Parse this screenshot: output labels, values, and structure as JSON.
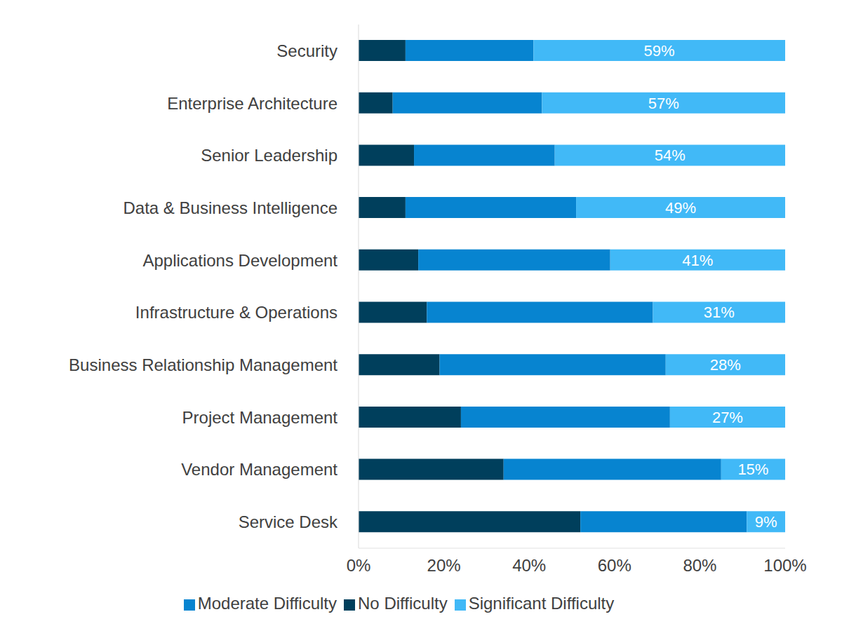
{
  "chart_data": {
    "type": "bar",
    "orientation": "horizontal",
    "stacked": true,
    "grid": false,
    "legend": "bottom",
    "categories": [
      "Security",
      "Enterprise Architecture",
      "Senior Leadership",
      "Data & Business Intelligence",
      "Applications Development",
      "Infrastructure & Operations",
      "Business Relationship Management",
      "Project Management",
      "Vendor Management",
      "Service Desk"
    ],
    "series": [
      {
        "name": "No Difficulty",
        "color": "#003f5c",
        "values": [
          11,
          8,
          13,
          11,
          14,
          16,
          19,
          24,
          34,
          52
        ]
      },
      {
        "name": "Moderate Difficulty",
        "color": "#0784d0",
        "values": [
          30,
          35,
          33,
          40,
          45,
          53,
          53,
          49,
          51,
          39
        ]
      },
      {
        "name": "Significant Difficulty",
        "color": "#41b9f7",
        "values": [
          59,
          57,
          54,
          49,
          41,
          31,
          28,
          27,
          15,
          9
        ],
        "data_labels": true,
        "value_labels": [
          "59%",
          "57%",
          "54%",
          "49%",
          "41%",
          "31%",
          "28%",
          "27%",
          "15%",
          "9%"
        ]
      }
    ],
    "xlim": [
      0,
      100
    ],
    "xticks": [
      {
        "value": 0,
        "label": "0%"
      },
      {
        "value": 20,
        "label": "20%"
      },
      {
        "value": 40,
        "label": "40%"
      },
      {
        "value": 60,
        "label": "60%"
      },
      {
        "value": 80,
        "label": "80%"
      },
      {
        "value": 100,
        "label": "100%"
      }
    ]
  }
}
